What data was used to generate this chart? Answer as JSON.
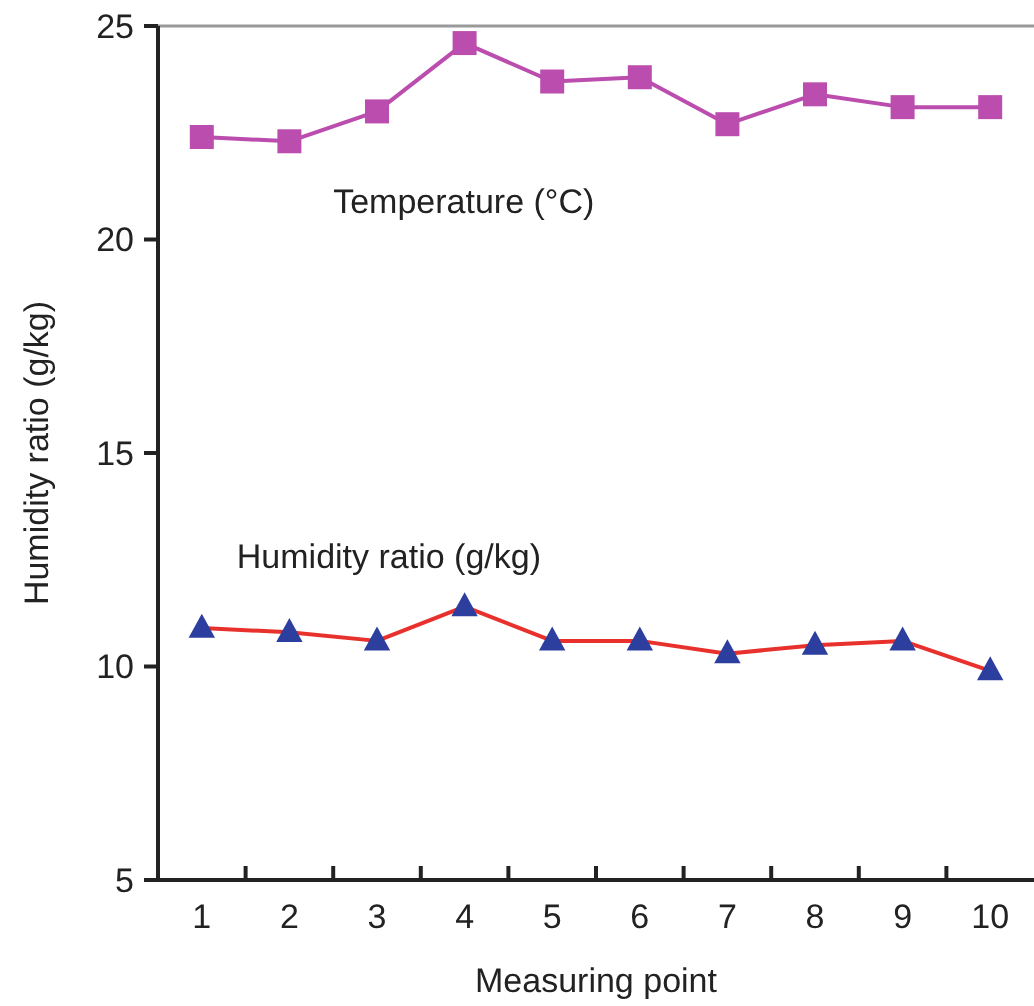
{
  "chart_data": {
    "type": "line",
    "xlabel": "Measuring point",
    "ylabel": "Humidity ratio (g/kg)",
    "categories": [
      "1",
      "2",
      "3",
      "4",
      "5",
      "6",
      "7",
      "8",
      "9",
      "10"
    ],
    "ylim": [
      5,
      25
    ],
    "yticks": [
      5,
      10,
      15,
      20,
      25
    ],
    "series": [
      {
        "name": "Temperature (°C)",
        "color": "#bb4daf",
        "marker": "square",
        "values": [
          22.4,
          22.3,
          23.0,
          24.6,
          23.7,
          23.8,
          22.7,
          23.4,
          23.1,
          23.1
        ]
      },
      {
        "name": "Humidity ratio (g/kg)",
        "color": "#e8312c",
        "marker": "triangle",
        "colors": [
          "#2c3e9e",
          "#2c3e9e",
          "#2c3e9e",
          "#2c3e9e",
          "#2c3e9e",
          "#2c3e9e",
          "#2c3e9e",
          "#2c3e9e",
          "#2c3e9e",
          "#2c3e9e"
        ],
        "values": [
          10.9,
          10.8,
          10.6,
          11.4,
          10.6,
          10.6,
          10.3,
          10.5,
          10.6,
          9.9
        ]
      }
    ]
  }
}
